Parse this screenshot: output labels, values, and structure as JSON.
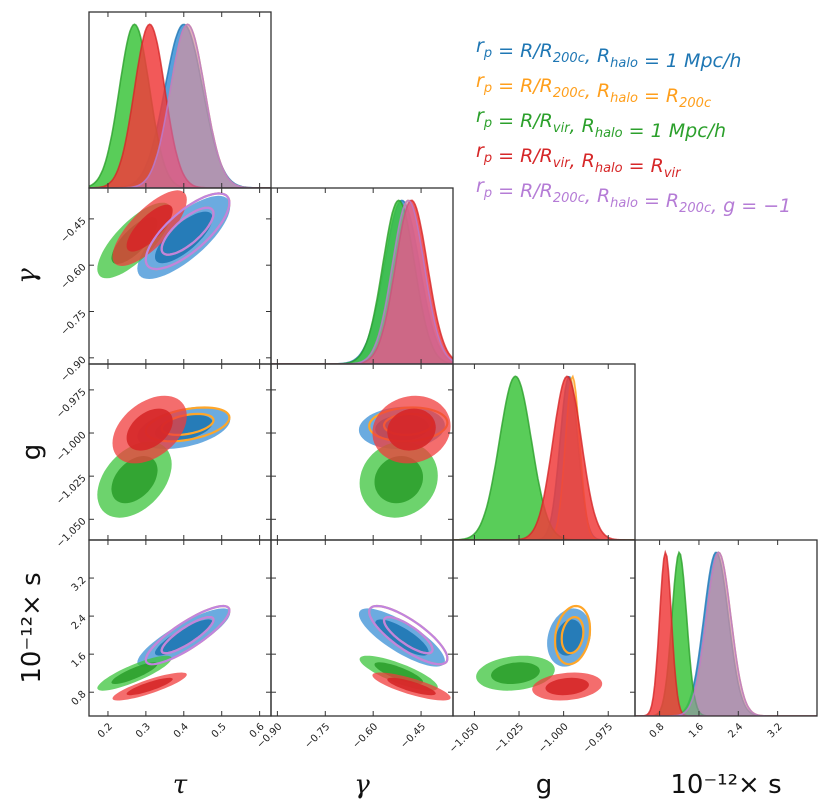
{
  "chart_data": {
    "type": "corner",
    "parameters": [
      {
        "key": "tau",
        "label": "τ",
        "range": [
          0.15,
          0.63
        ],
        "ticks": [
          0.2,
          0.3,
          0.4,
          0.5,
          0.6
        ],
        "tick_labels": [
          "0.2",
          "0.3",
          "0.4",
          "0.5",
          "0.6"
        ]
      },
      {
        "key": "gamma",
        "label": "γ",
        "range": [
          -0.92,
          -0.35
        ],
        "ticks": [
          -0.9,
          -0.75,
          -0.6,
          -0.45
        ],
        "tick_labels": [
          "−0.90",
          "−0.75",
          "−0.60",
          "−0.45"
        ]
      },
      {
        "key": "g",
        "label": "g",
        "range": [
          -1.062,
          -0.96
        ],
        "ticks": [
          -1.05,
          -1.025,
          -1.0,
          -0.975
        ],
        "tick_labels": [
          "−1.050",
          "−1.025",
          "−1.000",
          "−0.975"
        ]
      },
      {
        "key": "s",
        "label": "10⁻¹²× s",
        "range": [
          0.3,
          4.0
        ],
        "ticks": [
          0.8,
          1.6,
          2.4,
          3.2
        ],
        "tick_labels": [
          "0.8",
          "1.6",
          "2.4",
          "3.2"
        ]
      }
    ],
    "series": [
      {
        "name": "r_p = R/R_200c, R_halo = 1 Mpc/h",
        "color": "#1f77b4",
        "fill": "#3a8fd6",
        "mean": {
          "tau": 0.4,
          "gamma": -0.51,
          "g": -0.997,
          "s": 1.95
        },
        "sd": {
          "tau": 0.05,
          "gamma": 0.055,
          "g": 0.005,
          "s": 0.25
        },
        "filled": true
      },
      {
        "name": "r_p = R/R_200c, R_halo = R_200c",
        "color": "#ff9f1c",
        "fill": "#ffa629",
        "mean": {
          "tau": 0.41,
          "gamma": -0.49,
          "g": -0.995,
          "s": 2.0
        },
        "sd": {
          "tau": 0.045,
          "gamma": 0.05,
          "g": 0.004,
          "s": 0.25
        },
        "filled": false
      },
      {
        "name": "r_p = R/R_vir, R_halo = 1 Mpc/h",
        "color": "#2ca02c",
        "fill": "#3cc43c",
        "mean": {
          "tau": 0.27,
          "gamma": -0.52,
          "g": -1.027,
          "s": 1.2
        },
        "sd": {
          "tau": 0.04,
          "gamma": 0.05,
          "g": 0.009,
          "s": 0.15
        },
        "filled": true
      },
      {
        "name": "r_p = R/R_vir, R_halo = R_vir",
        "color": "#d62728",
        "fill": "#f03c3c",
        "mean": {
          "tau": 0.31,
          "gamma": -0.48,
          "g": -0.998,
          "s": 0.92
        },
        "sd": {
          "tau": 0.04,
          "gamma": 0.05,
          "g": 0.008,
          "s": 0.12
        },
        "filled": true
      },
      {
        "name": "r_p = R/R_200c, R_halo = R_200c, g = −1",
        "color": "#b57cd6",
        "fill": "#c084e0",
        "mean": {
          "tau": 0.41,
          "gamma": -0.49,
          "g": -1.0,
          "s": 2.0
        },
        "sd": {
          "tau": 0.045,
          "gamma": 0.05,
          "g": 0.0,
          "s": 0.25
        },
        "filled": false
      }
    ],
    "correlations": {
      "tau_gamma": 0.75,
      "tau_g": 0.4,
      "tau_s": 0.85,
      "gamma_g": 0.1,
      "gamma_s": -0.8,
      "g_s": 0.2
    }
  },
  "legend": {
    "entries": [
      {
        "color": "#1f77b4",
        "parts": [
          "r",
          "p",
          " = R/R",
          "200c",
          ", R",
          "halo",
          " = 1 Mpc/h"
        ]
      },
      {
        "color": "#ff9f1c",
        "parts": [
          "r",
          "p",
          " = R/R",
          "200c",
          ", R",
          "halo",
          " = R",
          "200c"
        ]
      },
      {
        "color": "#2ca02c",
        "parts": [
          "r",
          "p",
          " = R/R",
          "vir",
          ", R",
          "halo",
          " = 1 Mpc/h"
        ]
      },
      {
        "color": "#d62728",
        "parts": [
          "r",
          "p",
          " = R/R",
          "vir",
          ", R",
          "halo",
          " = R",
          "vir"
        ]
      },
      {
        "color": "#b57cd6",
        "parts": [
          "r",
          "p",
          " = R/R",
          "200c",
          ", R",
          "halo",
          " = R",
          "200c",
          ", g = −1"
        ]
      }
    ]
  }
}
